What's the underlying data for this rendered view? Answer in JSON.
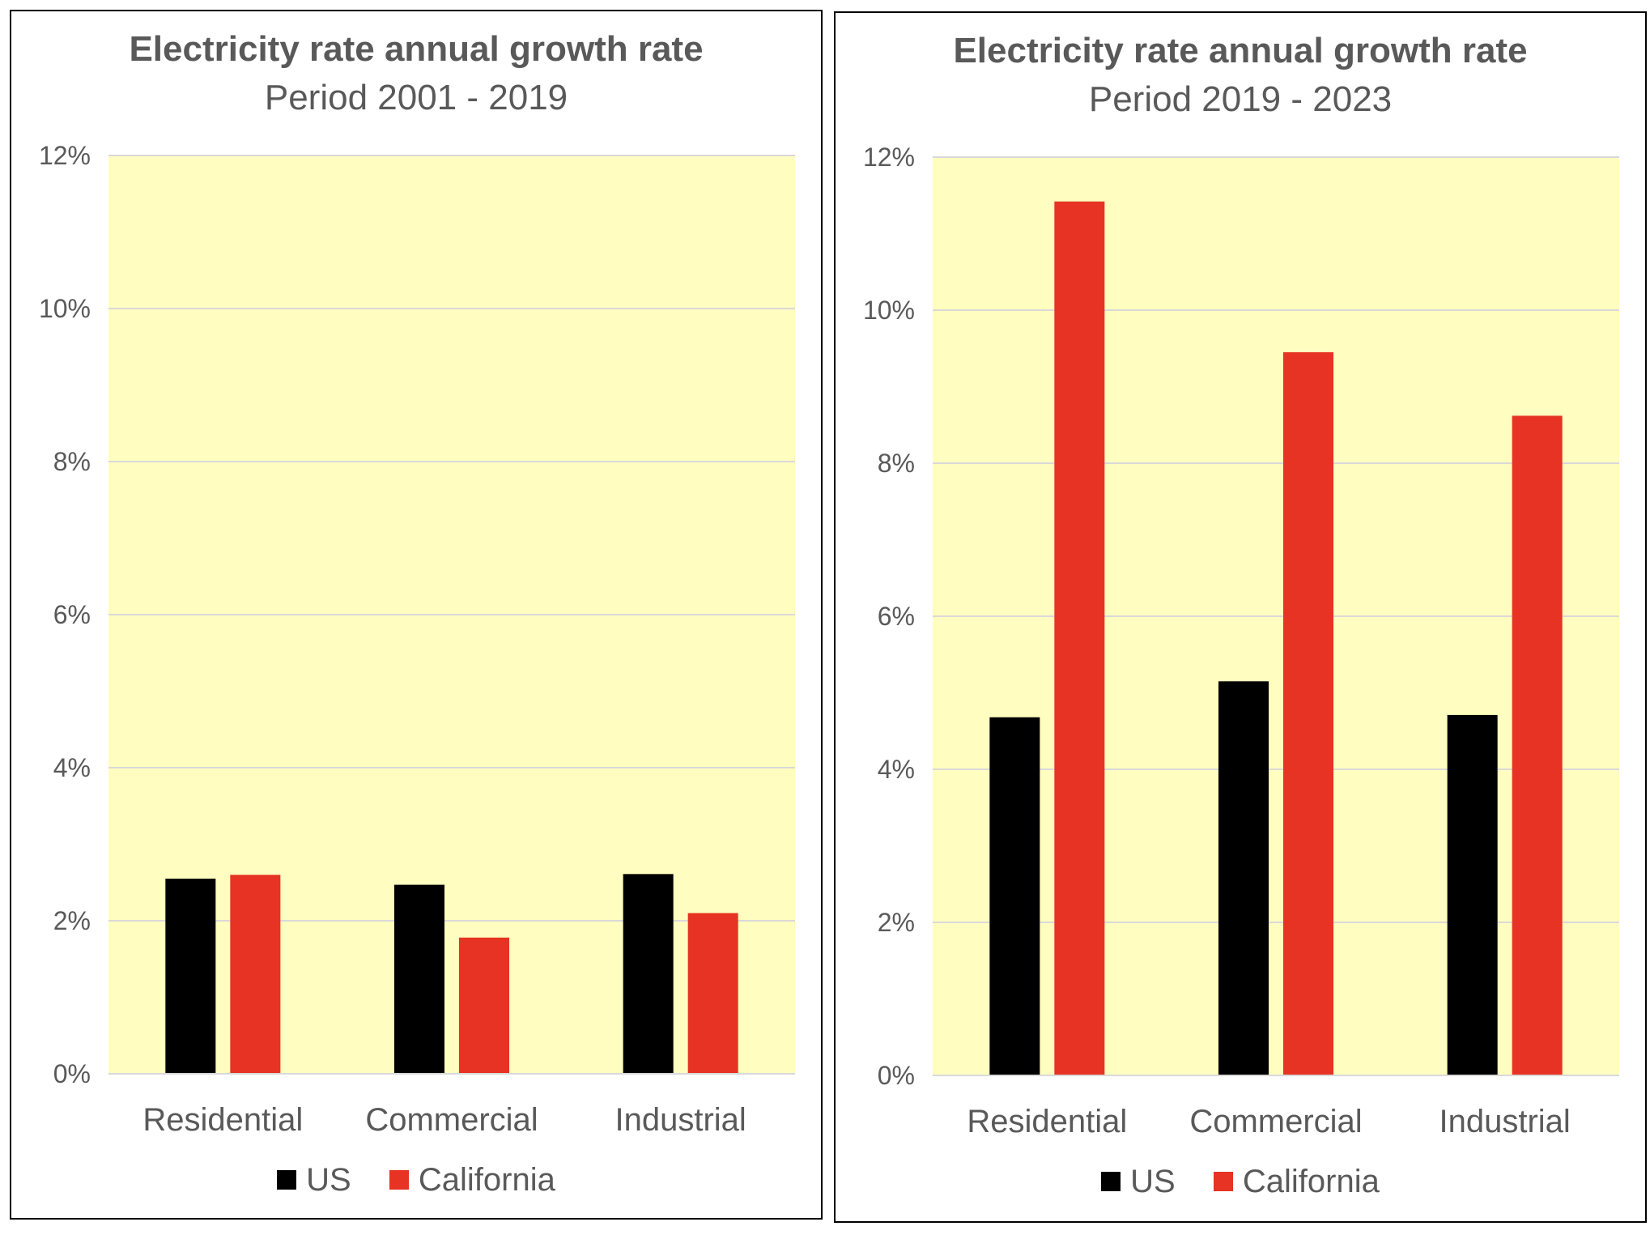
{
  "colors": {
    "us": "#000000",
    "california": "#E63323",
    "plot_bg": "#FFFDBF",
    "grid": "#D9D9D9",
    "text": "#595959"
  },
  "chart_data": [
    {
      "type": "bar",
      "title": "Electricity rate annual growth rate",
      "subtitle": "Period 2001 - 2019",
      "categories": [
        "Residential",
        "Commercial",
        "Industrial"
      ],
      "series": [
        {
          "name": "US",
          "values": [
            2.55,
            2.47,
            2.61
          ]
        },
        {
          "name": "California",
          "values": [
            2.6,
            1.78,
            2.1
          ]
        }
      ],
      "ylim": [
        0,
        12
      ],
      "yticks": [
        "0%",
        "2%",
        "4%",
        "6%",
        "8%",
        "10%",
        "12%"
      ],
      "grid": true,
      "legend": "bottom"
    },
    {
      "type": "bar",
      "title": "Electricity rate annual growth rate",
      "subtitle": "Period 2019 - 2023",
      "categories": [
        "Residential",
        "Commercial",
        "Industrial"
      ],
      "series": [
        {
          "name": "US",
          "values": [
            4.68,
            5.15,
            4.71
          ]
        },
        {
          "name": "California",
          "values": [
            11.42,
            9.45,
            8.62
          ]
        }
      ],
      "ylim": [
        0,
        12
      ],
      "yticks": [
        "0%",
        "2%",
        "4%",
        "6%",
        "8%",
        "10%",
        "12%"
      ],
      "grid": true,
      "legend": "bottom"
    }
  ]
}
